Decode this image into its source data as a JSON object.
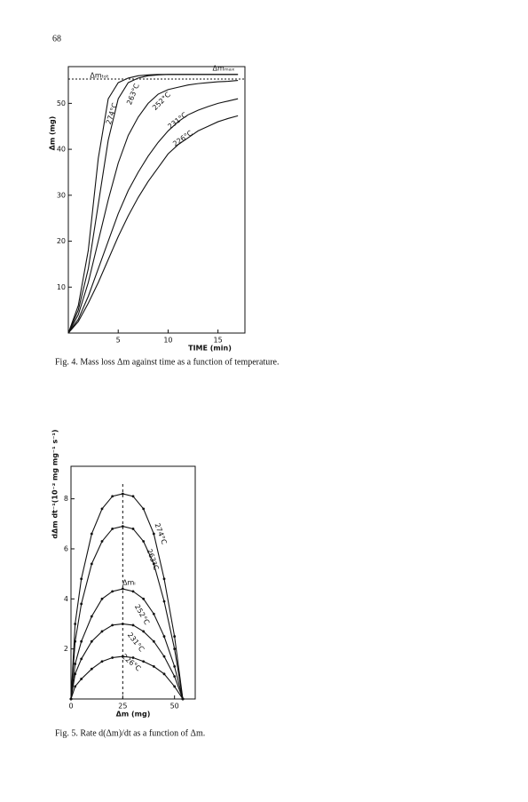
{
  "page_number": "68",
  "chart_data": [
    {
      "type": "line",
      "caption": "Fig. 4. Mass loss Δm against time as a function of temperature.",
      "xlabel": "TIME (min)",
      "ylabel": "Δm (mg)",
      "x": [
        0,
        1,
        2,
        3,
        4,
        5,
        6,
        7,
        8,
        9,
        10,
        11,
        12,
        13,
        14,
        15,
        16,
        17
      ],
      "series": [
        {
          "name": "274°C",
          "color": "#111111",
          "values": [
            0,
            6,
            18,
            38,
            51,
            54.5,
            55.5,
            56,
            56.2,
            56.3,
            56.3,
            56.3,
            56.3,
            56.3,
            56.3,
            56.3,
            56.3,
            56.3
          ]
        },
        {
          "name": "263°C",
          "color": "#111111",
          "values": [
            0,
            5,
            14,
            28,
            42,
            51,
            54.5,
            55.5,
            56,
            56.2,
            56.3,
            56.3,
            56.3,
            56.3,
            56.3,
            56.3,
            56.3,
            56.3
          ]
        },
        {
          "name": "252°C",
          "color": "#111111",
          "values": [
            0,
            4,
            11,
            20,
            29,
            37,
            43,
            47,
            50,
            52,
            53,
            53.5,
            54,
            54.3,
            54.5,
            54.7,
            54.8,
            55
          ]
        },
        {
          "name": "231°C",
          "color": "#111111",
          "values": [
            0,
            3,
            8,
            14,
            20,
            26,
            31,
            35,
            38.5,
            41.5,
            44,
            46,
            47.5,
            48.5,
            49.3,
            50,
            50.5,
            51
          ]
        },
        {
          "name": "226°C",
          "color": "#111111",
          "values": [
            0,
            2.5,
            6.5,
            11,
            16,
            21,
            25.5,
            29.5,
            33,
            36,
            39,
            41,
            42.5,
            44,
            45,
            46,
            46.7,
            47.3
          ]
        }
      ],
      "xlim": [
        0,
        17.7
      ],
      "xticks": [
        5,
        10,
        15
      ],
      "ylim": [
        0,
        58
      ],
      "yticks": [
        10,
        20,
        30,
        40,
        50
      ],
      "hline": 55.3,
      "hline_label": "Δmₜₒₜ",
      "annotation": "Δmₘₐₓ"
    },
    {
      "type": "line",
      "caption": "Fig. 5. Rate d(Δm)/dt as a function of Δm.",
      "xlabel": "Δm (mg)",
      "ylabel": "dΔm dt⁻¹(10⁻² mg mg⁻¹ s⁻¹)",
      "x": [
        0,
        2,
        5,
        10,
        15,
        20,
        25,
        30,
        35,
        40,
        45,
        50,
        54
      ],
      "series": [
        {
          "name": "274°C",
          "color": "#111111",
          "values": [
            0,
            3,
            4.8,
            6.6,
            7.6,
            8.1,
            8.2,
            8.1,
            7.6,
            6.6,
            4.8,
            2.5,
            0
          ]
        },
        {
          "name": "263°C",
          "color": "#111111",
          "values": [
            0,
            2.3,
            3.8,
            5.4,
            6.3,
            6.8,
            6.9,
            6.8,
            6.3,
            5.4,
            3.9,
            2,
            0
          ]
        },
        {
          "name": "252°C",
          "color": "#111111",
          "values": [
            0,
            1.4,
            2.3,
            3.3,
            4,
            4.3,
            4.4,
            4.3,
            4,
            3.4,
            2.5,
            1.3,
            0
          ]
        },
        {
          "name": "231°C",
          "color": "#111111",
          "values": [
            0,
            1,
            1.6,
            2.3,
            2.7,
            2.95,
            3,
            2.95,
            2.7,
            2.3,
            1.7,
            0.9,
            0
          ]
        },
        {
          "name": "226°C",
          "color": "#111111",
          "values": [
            0,
            0.5,
            0.8,
            1.2,
            1.5,
            1.65,
            1.7,
            1.65,
            1.5,
            1.3,
            1,
            0.5,
            0
          ]
        }
      ],
      "markers": true,
      "xlim": [
        0,
        60
      ],
      "xticks": [
        0,
        25,
        50
      ],
      "ylim": [
        0,
        9.3
      ],
      "yticks": [
        2,
        4,
        6,
        8
      ],
      "vline": 25,
      "vline_label": "Δmᵢ"
    }
  ]
}
